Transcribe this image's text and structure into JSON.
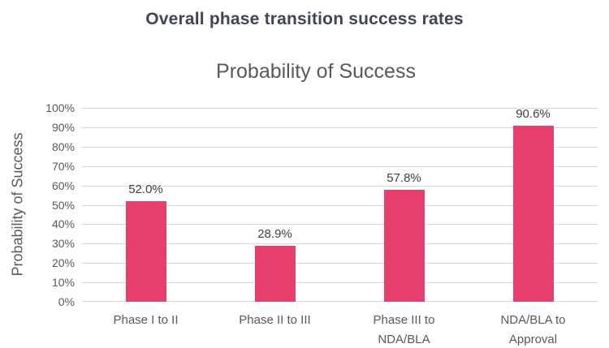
{
  "header": {
    "title": "Overall phase transition success rates"
  },
  "chart_data": {
    "type": "bar",
    "title": "Probability of Success",
    "categories": [
      "Phase I to II",
      "Phase II to III",
      "Phase III to\nNDA/BLA",
      "NDA/BLA to\nApproval"
    ],
    "values": [
      52.0,
      28.9,
      57.8,
      90.6
    ],
    "data_labels": [
      "52.0%",
      "28.9%",
      "57.8%",
      "90.6%"
    ],
    "xlabel": "",
    "ylabel": "Probability of Success",
    "ylim": [
      0,
      100
    ],
    "ytick_step": 10,
    "ytick_suffix": "%",
    "grid": true,
    "legend": "none"
  },
  "colors": {
    "background": "#FFFFFF",
    "main_title": "#404457",
    "chart_title": "#595959",
    "axis_text": "#595959",
    "data_label": "#404040",
    "gridline": "#D9D9D9",
    "bar": "#E83E6D"
  }
}
